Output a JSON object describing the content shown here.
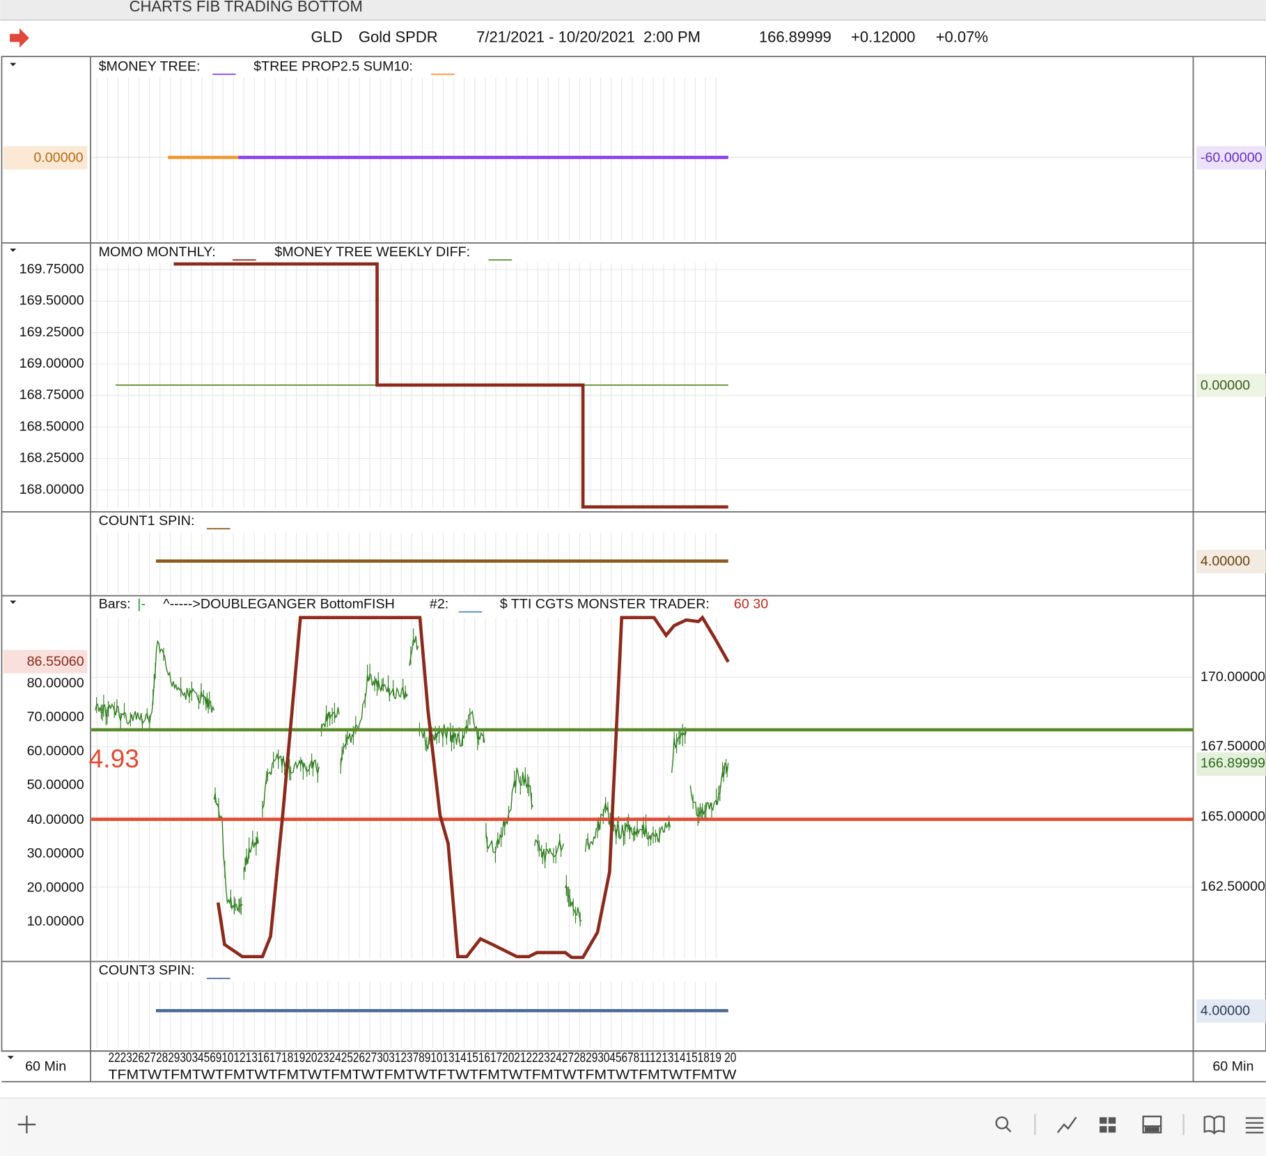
{
  "window_title": "CHARTS FIB TRADING BOTTOM",
  "header": {
    "symbol": "GLD",
    "name": "Gold SPDR",
    "range": "7/21/2021 - 10/20/2021  2:00 PM",
    "last": "166.89999",
    "change": "+0.12000",
    "change_pct": "+0.07%"
  },
  "panels": [
    {
      "legend": [
        "$MONEY TREE:",
        "$TREE PROP2.5 SUM10:"
      ],
      "left_labels": [
        "0.00000"
      ],
      "right_labels": [
        "-60.00000"
      ]
    },
    {
      "legend": [
        "MOMO MONTHLY:",
        "$MONEY TREE WEEKLY DIFF:"
      ],
      "left_labels": [
        "169.75000",
        "169.50000",
        "169.25000",
        "169.00000",
        "168.75000",
        "168.50000",
        "168.25000",
        "168.00000"
      ],
      "right_labels": [
        "0.00000"
      ]
    },
    {
      "legend": [
        "COUNT1 SPIN:"
      ],
      "right_labels": [
        "4.00000"
      ]
    },
    {
      "legend": [
        "Bars:",
        "|-",
        "^----->DOUBLEGANGER BottomFISH",
        "#2:",
        "$ TTI CGTS MONSTER TRADER:",
        "60 30"
      ],
      "overlay": "4.93",
      "left_labels": [
        "86.55060",
        "80.00000",
        "70.00000",
        "60.00000",
        "50.00000",
        "40.00000",
        "30.00000",
        "20.00000",
        "10.00000"
      ],
      "right_labels": [
        "170.00000",
        "167.50000",
        "166.89999",
        "165.00000",
        "162.50000"
      ]
    },
    {
      "legend": [
        "COUNT3 SPIN:"
      ],
      "right_labels": [
        "4.00000"
      ]
    }
  ],
  "footer": {
    "interval_left": "60 Min",
    "interval_right": "60 Min",
    "dates": "2223262728293034569101213161718192023242526273031237891013141516172021222324272829304567811121314151819 20",
    "weekdays": "TFMTWTFMTWTFMTWTFMTWTFMTWTFMTWTFTWTFMTWTFMTWTFMTWTFMTWTFMTW"
  }
}
